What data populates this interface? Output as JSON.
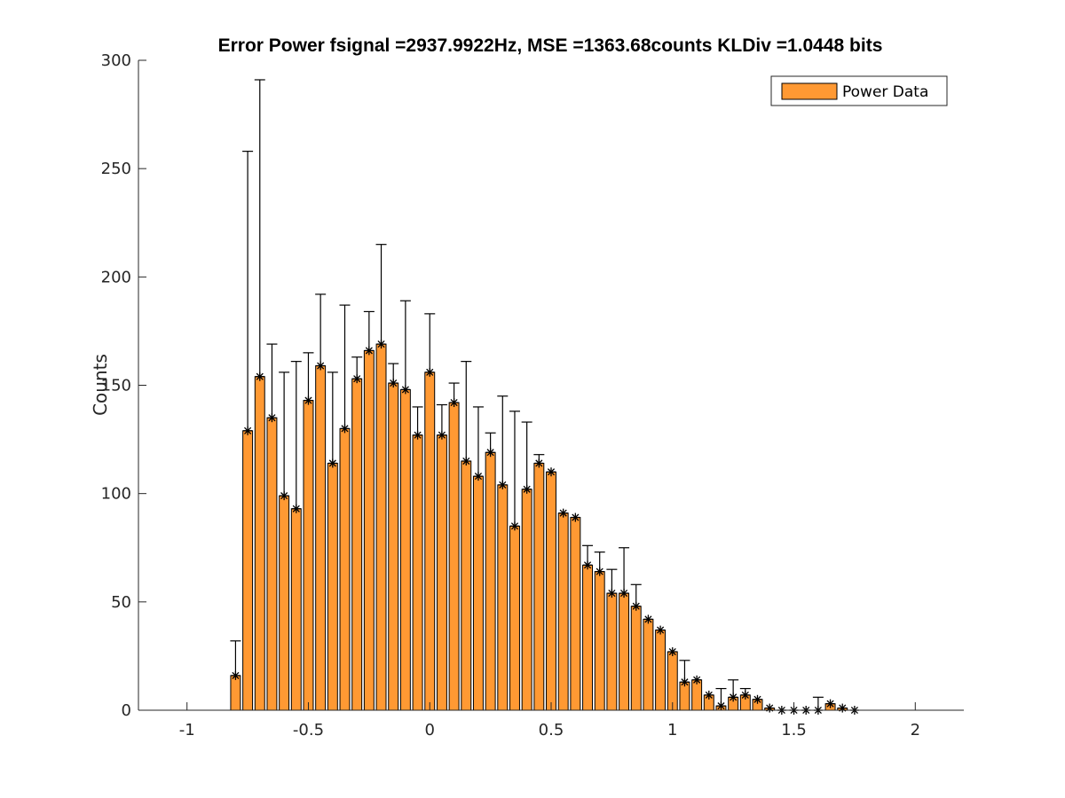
{
  "chart_data": {
    "type": "bar",
    "title": "Error Power fsignal =2937.9922Hz, MSE =1363.68counts KLDiv =1.0448 bits",
    "xlabel": "",
    "ylabel": "Counts",
    "xlim": [
      -1.2,
      2.2
    ],
    "ylim": [
      0,
      300
    ],
    "xticks": [
      -1,
      -0.5,
      0,
      0.5,
      1,
      1.5,
      2
    ],
    "xtick_labels": [
      "-1",
      "-0.5",
      "0",
      "0.5",
      "1",
      "1.5",
      "2"
    ],
    "yticks": [
      0,
      50,
      100,
      150,
      200,
      250,
      300
    ],
    "ytick_labels": [
      "0",
      "50",
      "100",
      "150",
      "200",
      "250",
      "300"
    ],
    "grid": false,
    "legend_position": "top-right",
    "bar_color": "#ff9933",
    "series": [
      {
        "name": "Power Data",
        "x": [
          -0.8,
          -0.75,
          -0.7,
          -0.65,
          -0.6,
          -0.55,
          -0.5,
          -0.45,
          -0.4,
          -0.35,
          -0.3,
          -0.25,
          -0.2,
          -0.15,
          -0.1,
          -0.05,
          0,
          0.05,
          0.1,
          0.15,
          0.2,
          0.25,
          0.3,
          0.35,
          0.4,
          0.45,
          0.5,
          0.55,
          0.6,
          0.65,
          0.7,
          0.75,
          0.8,
          0.85,
          0.9,
          0.95,
          1,
          1.05,
          1.1,
          1.15,
          1.2,
          1.25,
          1.3,
          1.35,
          1.4,
          1.45,
          1.5,
          1.55,
          1.6,
          1.65,
          1.7,
          1.75
        ],
        "values": [
          16,
          129,
          154,
          135,
          99,
          93,
          143,
          159,
          114,
          130,
          153,
          166,
          169,
          151,
          148,
          127,
          156,
          127,
          142,
          115,
          108,
          119,
          104,
          85,
          102,
          114,
          110,
          91,
          89,
          67,
          64,
          54,
          54,
          48,
          42,
          37,
          27,
          13,
          14,
          7,
          2,
          6,
          7,
          5,
          1,
          0,
          0,
          0,
          0,
          3,
          1,
          0
        ]
      }
    ],
    "error_tops": [
      32,
      258,
      291,
      169,
      156,
      161,
      165,
      192,
      156,
      187,
      163,
      184,
      215,
      160,
      189,
      140,
      183,
      141,
      151,
      161,
      140,
      128,
      145,
      138,
      133,
      118,
      99,
      90,
      81,
      76,
      73,
      65,
      75,
      58,
      42,
      37,
      21,
      23,
      11,
      3,
      10,
      14,
      10,
      3,
      1,
      0,
      0,
      0,
      6,
      2,
      0,
      0
    ],
    "legend": [
      "Power Data"
    ]
  }
}
